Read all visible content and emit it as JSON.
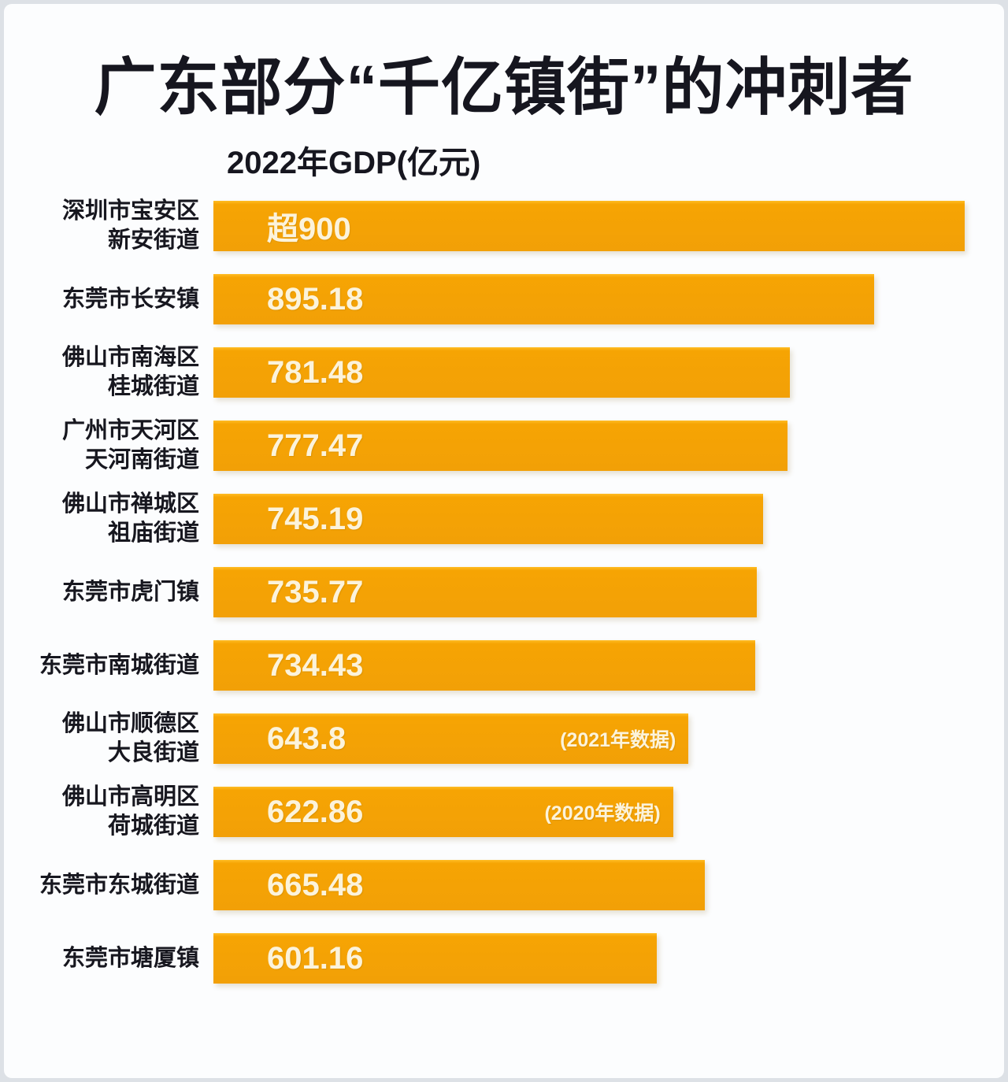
{
  "page": {
    "background": "#dde1e6",
    "card_background": "#fcfdfe"
  },
  "title": "广东部分“千亿镇街”的冲刺者",
  "chart_data": {
    "type": "bar",
    "orientation": "horizontal",
    "title": "广东部分“千亿镇街”的冲刺者",
    "value_axis_label": "2022年GDP(亿元)",
    "unit": "亿元",
    "year": "2022",
    "xlim": [
      0,
      1020
    ],
    "grid": false,
    "legend": false,
    "bar_color": "#F5A204",
    "bar_top_highlight": "#FFBD24",
    "value_label_color": "#FCF3DB",
    "category_label_color": "#17171F",
    "bars": [
      {
        "label_lines": [
          "深圳市宝安区",
          "新安街道"
        ],
        "value_label": "超900",
        "value": 900,
        "render_length": 1018,
        "note": ""
      },
      {
        "label_lines": [
          "东莞市长安镇"
        ],
        "value_label": "895.18",
        "value": 895.18,
        "render_length": 895.18,
        "note": ""
      },
      {
        "label_lines": [
          "佛山市南海区",
          "桂城街道"
        ],
        "value_label": "781.48",
        "value": 781.48,
        "render_length": 781.48,
        "note": ""
      },
      {
        "label_lines": [
          "广州市天河区",
          "天河南街道"
        ],
        "value_label": "777.47",
        "value": 777.47,
        "render_length": 777.47,
        "note": ""
      },
      {
        "label_lines": [
          "佛山市禅城区",
          "祖庙街道"
        ],
        "value_label": "745.19",
        "value": 745.19,
        "render_length": 745.19,
        "note": ""
      },
      {
        "label_lines": [
          "东莞市虎门镇"
        ],
        "value_label": "735.77",
        "value": 735.77,
        "render_length": 735.77,
        "note": ""
      },
      {
        "label_lines": [
          "东莞市南城街道"
        ],
        "value_label": "734.43",
        "value": 734.43,
        "render_length": 734.43,
        "note": ""
      },
      {
        "label_lines": [
          "佛山市顺德区",
          "大良街道"
        ],
        "value_label": "643.8",
        "value": 643.8,
        "render_length": 643.8,
        "note": "(2021年数据)"
      },
      {
        "label_lines": [
          "佛山市高明区",
          "荷城街道"
        ],
        "value_label": "622.86",
        "value": 622.86,
        "render_length": 622.86,
        "note": "(2020年数据)"
      },
      {
        "label_lines": [
          "东莞市东城街道"
        ],
        "value_label": "665.48",
        "value": 665.48,
        "render_length": 665.48,
        "note": ""
      },
      {
        "label_lines": [
          "东莞市塘厦镇"
        ],
        "value_label": "601.16",
        "value": 601.16,
        "render_length": 601.16,
        "note": ""
      }
    ]
  }
}
